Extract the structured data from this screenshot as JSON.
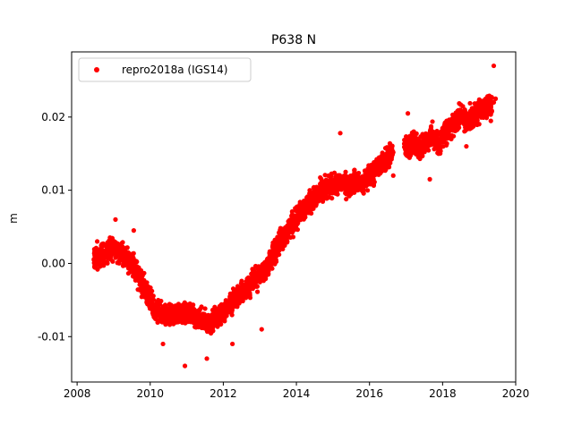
{
  "chart_data": {
    "type": "scatter",
    "title": "P638 N",
    "xlabel": "",
    "ylabel": "m",
    "xlim": [
      2007.85,
      2020.0
    ],
    "ylim": [
      -0.0162,
      0.0289
    ],
    "x_ticks": [
      2008,
      2010,
      2012,
      2014,
      2016,
      2018,
      2020
    ],
    "x_tick_labels": [
      "2008",
      "2010",
      "2012",
      "2014",
      "2016",
      "2018",
      "2020"
    ],
    "y_ticks": [
      -0.01,
      0.0,
      0.01,
      0.02
    ],
    "y_tick_labels": [
      "-0.01",
      "0.00",
      "0.01",
      "0.02"
    ],
    "grid": false,
    "legend_position": "top-left",
    "series": [
      {
        "name": "repro2018a (IGS14)",
        "color": "#ff0000",
        "marker": "circle",
        "x": [
          2008.5,
          2008.6,
          2008.7,
          2008.8,
          2008.9,
          2009.0,
          2009.1,
          2009.2,
          2009.3,
          2009.4,
          2009.5,
          2009.6,
          2009.7,
          2009.8,
          2009.9,
          2010.0,
          2010.1,
          2010.2,
          2010.3,
          2010.4,
          2010.5,
          2010.6,
          2010.7,
          2010.8,
          2010.9,
          2011.0,
          2011.1,
          2011.2,
          2011.3,
          2011.4,
          2011.5,
          2011.6,
          2011.7,
          2011.8,
          2011.9,
          2012.0,
          2012.1,
          2012.2,
          2012.3,
          2012.4,
          2012.5,
          2012.6,
          2012.7,
          2012.8,
          2012.9,
          2013.0,
          2013.1,
          2013.2,
          2013.3,
          2013.4,
          2013.5,
          2013.6,
          2013.7,
          2013.8,
          2013.9,
          2014.0,
          2014.1,
          2014.2,
          2014.3,
          2014.4,
          2014.5,
          2014.6,
          2014.7,
          2014.8,
          2014.9,
          2015.0,
          2015.1,
          2015.2,
          2015.3,
          2015.4,
          2015.5,
          2015.6,
          2015.7,
          2015.8,
          2015.9,
          2016.0,
          2016.1,
          2016.2,
          2016.3,
          2016.4,
          2016.5,
          2016.6,
          2017.0,
          2017.1,
          2017.2,
          2017.3,
          2017.4,
          2017.5,
          2017.6,
          2017.7,
          2017.8,
          2017.9,
          2018.0,
          2018.1,
          2018.2,
          2018.3,
          2018.4,
          2018.5,
          2018.6,
          2018.7,
          2018.8,
          2018.9,
          2019.0,
          2019.1,
          2019.2,
          2019.3,
          2019.4,
          2019.45,
          2008.55,
          2009.05,
          2009.55,
          2010.35,
          2010.95,
          2011.55,
          2012.25,
          2013.05,
          2015.2,
          2016.65,
          2017.05,
          2017.65,
          2018.65,
          2019.4
        ],
        "y": [
          0.0005,
          0.0008,
          0.0012,
          0.0015,
          0.0018,
          0.002,
          0.0019,
          0.0015,
          0.001,
          0.0005,
          0.0,
          -0.001,
          -0.002,
          -0.003,
          -0.004,
          -0.005,
          -0.006,
          -0.0065,
          -0.007,
          -0.007,
          -0.0072,
          -0.0073,
          -0.0072,
          -0.007,
          -0.0068,
          -0.0068,
          -0.0069,
          -0.0072,
          -0.0075,
          -0.0078,
          -0.008,
          -0.0082,
          -0.008,
          -0.0075,
          -0.007,
          -0.0065,
          -0.006,
          -0.0055,
          -0.005,
          -0.0045,
          -0.004,
          -0.0035,
          -0.003,
          -0.0025,
          -0.002,
          -0.0015,
          -0.001,
          -0.0005,
          0.0005,
          0.0015,
          0.0025,
          0.0032,
          0.004,
          0.0048,
          0.0055,
          0.0062,
          0.007,
          0.0075,
          0.008,
          0.0085,
          0.009,
          0.0095,
          0.01,
          0.0102,
          0.0104,
          0.0106,
          0.0108,
          0.011,
          0.0108,
          0.0105,
          0.011,
          0.0112,
          0.011,
          0.0108,
          0.0115,
          0.012,
          0.0125,
          0.013,
          0.0135,
          0.014,
          0.0145,
          0.015,
          0.016,
          0.0162,
          0.0165,
          0.016,
          0.0155,
          0.0165,
          0.017,
          0.0175,
          0.0168,
          0.016,
          0.0175,
          0.018,
          0.0185,
          0.019,
          0.0195,
          0.02,
          0.0198,
          0.0195,
          0.02,
          0.0205,
          0.0208,
          0.021,
          0.0212,
          0.0215,
          0.022,
          0.0225,
          0.003,
          0.006,
          0.0045,
          -0.011,
          -0.014,
          -0.013,
          -0.011,
          -0.009,
          0.0178,
          0.012,
          0.0205,
          0.0115,
          0.016,
          0.027
        ],
        "spread": 0.0018
      }
    ]
  }
}
